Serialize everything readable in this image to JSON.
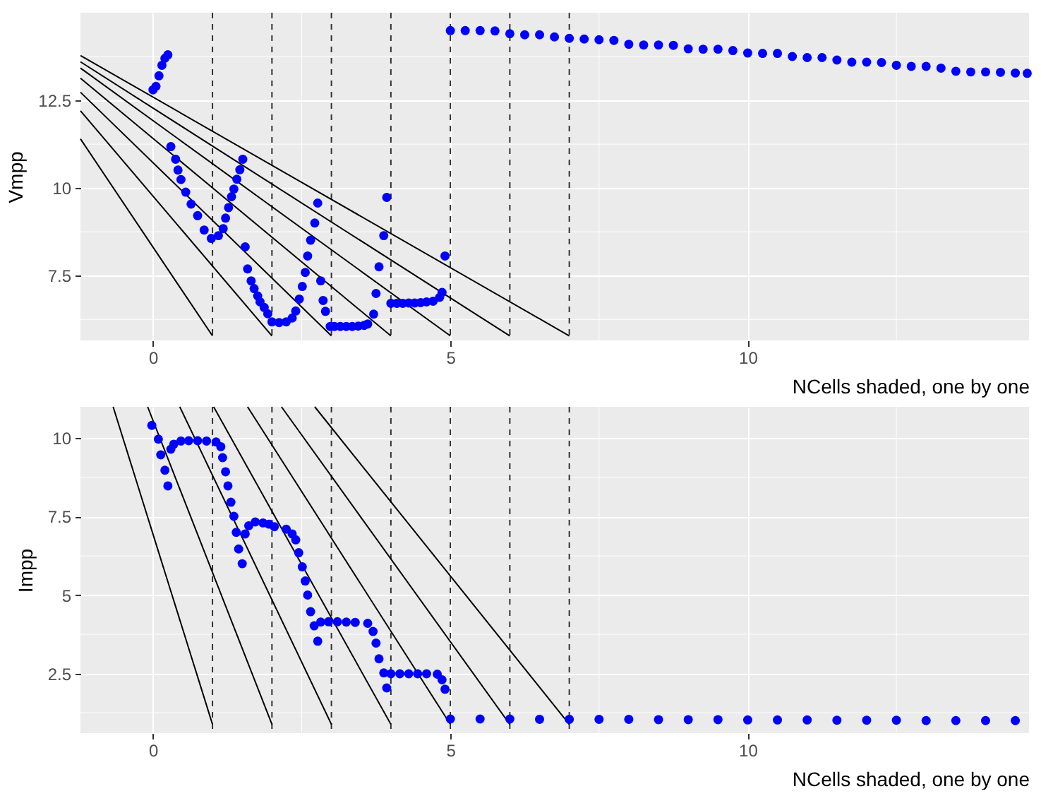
{
  "chart_data": [
    {
      "type": "scatter",
      "xlabel": "NCells shaded, one by one",
      "ylabel": "Vmpp",
      "xlim": [
        -1.22,
        14.73
      ],
      "ylim": [
        5.65,
        15.0
      ],
      "xticks": [
        0,
        {
          "value": 2.5,
          "label": null
        },
        5,
        {
          "value": 7.5,
          "label": null
        },
        10,
        {
          "value": 12.5,
          "label": null
        }
      ],
      "yticks": [
        {
          "value": 6.25,
          "label": null
        },
        7.5,
        {
          "value": 8.75,
          "label": null
        },
        10,
        {
          "value": 11.25,
          "label": null
        },
        12.5,
        {
          "value": 13.75,
          "label": null
        }
      ],
      "grid": true,
      "ref_lines": [
        {
          "axis": "x",
          "value": 1,
          "color": "#333333",
          "line_style": "dashed"
        },
        {
          "axis": "x",
          "value": 2,
          "color": "#333333",
          "line_style": "dashed"
        },
        {
          "axis": "x",
          "value": 3,
          "color": "#333333",
          "line_style": "dashed"
        },
        {
          "axis": "x",
          "value": 4,
          "color": "#333333",
          "line_style": "dashed"
        },
        {
          "axis": "x",
          "value": 5,
          "color": "#333333",
          "line_style": "dashed"
        },
        {
          "axis": "x",
          "value": 6,
          "color": "#333333",
          "line_style": "dashed"
        },
        {
          "axis": "x",
          "value": 7,
          "color": "#333333",
          "line_style": "dashed"
        }
      ],
      "series": [
        {
          "type": "line",
          "color": "#000000",
          "x": [
            -1.22,
            1
          ],
          "values": [
            11.4,
            5.78
          ]
        },
        {
          "type": "line",
          "color": "#000000",
          "x": [
            -1.22,
            2
          ],
          "values": [
            12.2,
            5.78
          ]
        },
        {
          "type": "line",
          "color": "#000000",
          "x": [
            -1.22,
            3
          ],
          "values": [
            12.73,
            5.78
          ]
        },
        {
          "type": "line",
          "color": "#000000",
          "x": [
            -1.22,
            4
          ],
          "values": [
            13.13,
            5.78
          ]
        },
        {
          "type": "line",
          "color": "#000000",
          "x": [
            -1.22,
            5
          ],
          "values": [
            13.42,
            5.78
          ]
        },
        {
          "type": "line",
          "color": "#000000",
          "x": [
            -1.22,
            6
          ],
          "values": [
            13.6,
            5.78
          ]
        },
        {
          "type": "line",
          "color": "#000000",
          "x": [
            -1.22,
            7
          ],
          "values": [
            13.78,
            5.78
          ]
        },
        {
          "type": "scatter",
          "color": "#0000ff",
          "marker": "circle",
          "x": [
            0.0,
            0.05,
            0.1,
            0.15,
            0.2,
            0.25,
            0.3,
            0.38,
            0.42,
            0.47,
            0.55,
            0.64,
            0.75,
            0.86,
            0.98,
            1.1,
            1.18,
            1.22,
            1.27,
            1.32,
            1.36,
            1.41,
            1.46,
            1.51,
            1.55,
            1.59,
            1.65,
            1.7,
            1.76,
            1.8,
            1.87,
            1.93,
            2.0,
            2.12,
            2.24,
            2.34,
            2.4,
            2.46,
            2.51,
            2.56,
            2.6,
            2.65,
            2.72,
            2.77,
            2.82,
            2.86,
            2.9,
            2.98,
            3.05,
            3.15,
            3.25,
            3.35,
            3.45,
            3.55,
            3.61,
            3.71,
            3.75,
            3.8,
            3.88,
            3.93,
            4.0,
            4.1,
            4.2,
            4.3,
            4.4,
            4.5,
            4.6,
            4.71,
            4.82,
            4.86,
            4.91,
            5.0,
            5.25,
            5.5,
            5.75,
            6.0,
            6.25,
            6.5,
            6.75,
            7.0,
            7.25,
            7.5,
            7.75,
            8.0,
            8.25,
            8.5,
            8.75,
            9.0,
            9.25,
            9.5,
            9.75,
            10.0,
            10.25,
            10.5,
            10.75,
            11.0,
            11.25,
            11.5,
            11.75,
            12.0,
            12.25,
            12.5,
            12.75,
            13.0,
            13.25,
            13.5,
            13.75,
            14.0,
            14.25,
            14.5,
            14.7
          ],
          "values": [
            12.8,
            12.9,
            13.2,
            13.5,
            13.7,
            13.8,
            11.18,
            10.82,
            10.51,
            10.24,
            9.88,
            9.54,
            9.21,
            8.8,
            8.56,
            8.64,
            8.84,
            9.14,
            9.44,
            9.75,
            9.97,
            10.25,
            10.52,
            10.82,
            8.32,
            7.69,
            7.35,
            7.13,
            6.92,
            6.75,
            6.59,
            6.41,
            6.18,
            6.16,
            6.18,
            6.29,
            6.49,
            6.83,
            7.19,
            7.59,
            8.06,
            8.51,
            9.0,
            9.57,
            7.35,
            6.79,
            6.48,
            6.05,
            6.05,
            6.05,
            6.05,
            6.05,
            6.06,
            6.08,
            6.12,
            6.4,
            6.99,
            7.75,
            8.64,
            9.73,
            6.71,
            6.71,
            6.71,
            6.72,
            6.72,
            6.73,
            6.75,
            6.77,
            6.88,
            7.02,
            8.06,
            14.49,
            14.49,
            14.49,
            14.48,
            14.4,
            14.37,
            14.37,
            14.31,
            14.27,
            14.25,
            14.23,
            14.21,
            14.1,
            14.08,
            14.08,
            14.07,
            13.97,
            13.96,
            13.96,
            13.92,
            13.85,
            13.84,
            13.84,
            13.75,
            13.72,
            13.72,
            13.65,
            13.59,
            13.59,
            13.58,
            13.5,
            13.47,
            13.47,
            13.42,
            13.33,
            13.31,
            13.31,
            13.3,
            13.28,
            13.27
          ]
        }
      ]
    },
    {
      "type": "scatter",
      "xlabel": "NCells shaded, one by one",
      "ylabel": "Impp",
      "xlim": [
        -1.22,
        14.73
      ],
      "ylim": [
        0.6,
        11.0
      ],
      "xticks": [
        0,
        {
          "value": 2.5,
          "label": null
        },
        5,
        {
          "value": 7.5,
          "label": null
        },
        10,
        {
          "value": 12.5,
          "label": null
        }
      ],
      "yticks": [
        {
          "value": 1.25,
          "label": null
        },
        2.5,
        {
          "value": 3.75,
          "label": null
        },
        5,
        {
          "value": 6.25,
          "label": null
        },
        7.5,
        {
          "value": 8.75,
          "label": null
        },
        10
      ],
      "grid": true,
      "ref_lines": [
        {
          "axis": "x",
          "value": 1,
          "color": "#333333",
          "line_style": "dashed"
        },
        {
          "axis": "x",
          "value": 2,
          "color": "#333333",
          "line_style": "dashed"
        },
        {
          "axis": "x",
          "value": 3,
          "color": "#333333",
          "line_style": "dashed"
        },
        {
          "axis": "x",
          "value": 4,
          "color": "#333333",
          "line_style": "dashed"
        },
        {
          "axis": "x",
          "value": 5,
          "color": "#333333",
          "line_style": "dashed"
        },
        {
          "axis": "x",
          "value": 6,
          "color": "#333333",
          "line_style": "dashed"
        },
        {
          "axis": "x",
          "value": 7,
          "color": "#333333",
          "line_style": "dashed"
        }
      ],
      "series": [
        {
          "type": "line",
          "color": "#000000",
          "x": [
            -0.67,
            1
          ],
          "values": [
            11.0,
            0.88
          ]
        },
        {
          "type": "line",
          "color": "#000000",
          "x": [
            -0.09,
            2
          ],
          "values": [
            11.0,
            0.88
          ]
        },
        {
          "type": "line",
          "color": "#000000",
          "x": [
            0.45,
            3
          ],
          "values": [
            11.0,
            0.88
          ]
        },
        {
          "type": "line",
          "color": "#000000",
          "x": [
            1.02,
            4
          ],
          "values": [
            11.0,
            0.88
          ]
        },
        {
          "type": "line",
          "color": "#000000",
          "x": [
            1.59,
            5
          ],
          "values": [
            11.0,
            0.88
          ]
        },
        {
          "type": "line",
          "color": "#000000",
          "x": [
            2.16,
            6
          ],
          "values": [
            11.0,
            0.88
          ]
        },
        {
          "type": "line",
          "color": "#000000",
          "x": [
            2.72,
            7
          ],
          "values": [
            11.0,
            0.88
          ]
        },
        {
          "type": "scatter",
          "color": "#0000ff",
          "marker": "circle",
          "x": [
            -0.02,
            0.09,
            0.13,
            0.2,
            0.25,
            0.3,
            0.35,
            0.47,
            0.6,
            0.75,
            0.9,
            1.06,
            1.14,
            1.17,
            1.22,
            1.26,
            1.31,
            1.36,
            1.4,
            1.44,
            1.5,
            1.55,
            1.61,
            1.72,
            1.85,
            1.95,
            2.04,
            2.24,
            2.34,
            2.4,
            2.45,
            2.51,
            2.56,
            2.6,
            2.65,
            2.71,
            2.77,
            2.82,
            2.95,
            3.1,
            3.25,
            3.4,
            3.61,
            3.7,
            3.75,
            3.8,
            3.88,
            3.93,
            4.0,
            4.15,
            4.3,
            4.45,
            4.6,
            4.78,
            4.86,
            4.91,
            5.0,
            5.5,
            6.0,
            6.5,
            7.0,
            7.5,
            8.0,
            8.5,
            9.0,
            9.5,
            10.0,
            10.5,
            11.0,
            11.5,
            12.0,
            12.5,
            13.0,
            13.5,
            14.0,
            14.5
          ],
          "values": [
            10.41,
            9.97,
            9.47,
            8.98,
            8.48,
            9.65,
            9.81,
            9.91,
            9.92,
            9.92,
            9.91,
            9.88,
            9.73,
            9.38,
            8.93,
            8.48,
            7.96,
            7.51,
            7.0,
            6.47,
            6.0,
            6.95,
            7.21,
            7.33,
            7.3,
            7.26,
            7.18,
            7.1,
            6.95,
            6.76,
            6.35,
            5.9,
            5.45,
            5.0,
            4.47,
            4.02,
            3.53,
            4.14,
            4.15,
            4.15,
            4.14,
            4.13,
            4.1,
            3.84,
            3.47,
            2.97,
            2.52,
            2.04,
            2.49,
            2.49,
            2.49,
            2.49,
            2.49,
            2.48,
            2.3,
            2.0,
            1.05,
            1.05,
            1.05,
            1.04,
            1.04,
            1.04,
            1.04,
            1.03,
            1.03,
            1.03,
            1.02,
            1.02,
            1.02,
            1.01,
            1.01,
            1.01,
            1.0,
            1.0,
            1.0,
            1.0
          ]
        }
      ]
    }
  ]
}
